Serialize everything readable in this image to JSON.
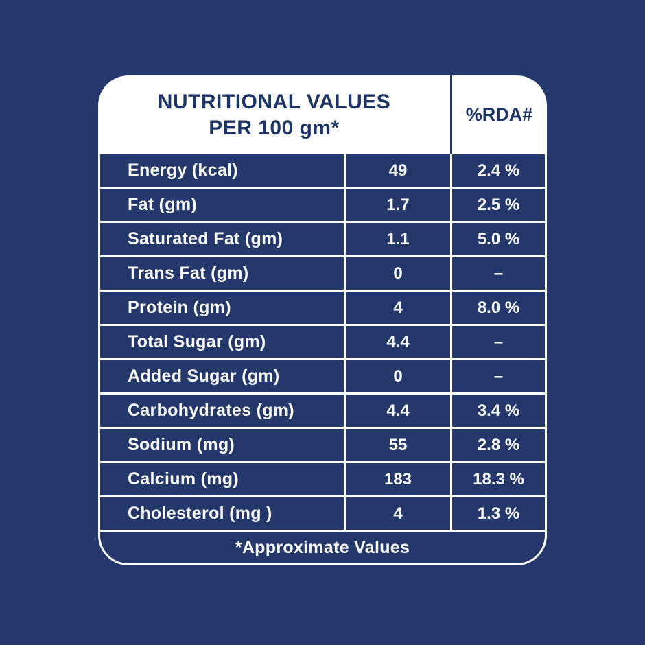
{
  "colors": {
    "background": "#24386B",
    "cell_fill": "#24386B",
    "card_white": "#FFFFFF",
    "text_dark": "#1C3467",
    "text_light": "#FFFFFF"
  },
  "header": {
    "title_line1": "NUTRITIONAL VALUES",
    "title_line2": "PER 100 gm*",
    "rda_column_label": "%RDA#"
  },
  "rows": [
    {
      "label": "Energy (kcal)",
      "value": "49",
      "rda": "2.4 %"
    },
    {
      "label": "Fat (gm)",
      "value": "1.7",
      "rda": "2.5 %"
    },
    {
      "label": "Saturated Fat (gm)",
      "value": "1.1",
      "rda": "5.0 %"
    },
    {
      "label": "Trans Fat (gm)",
      "value": "0",
      "rda": "–"
    },
    {
      "label": "Protein (gm)",
      "value": "4",
      "rda": "8.0 %"
    },
    {
      "label": "Total Sugar (gm)",
      "value": "4.4",
      "rda": "–"
    },
    {
      "label": "Added Sugar (gm)",
      "value": "0",
      "rda": "–"
    },
    {
      "label": "Carbohydrates (gm)",
      "value": "4.4",
      "rda": "3.4 %"
    },
    {
      "label": "Sodium (mg)",
      "value": "55",
      "rda": "2.8 %"
    },
    {
      "label": "Calcium (mg)",
      "value": "183",
      "rda": "18.3 %"
    },
    {
      "label": "Cholesterol (mg )",
      "value": "4",
      "rda": "1.3 %"
    }
  ],
  "footer": {
    "note": "*Approximate Values"
  }
}
